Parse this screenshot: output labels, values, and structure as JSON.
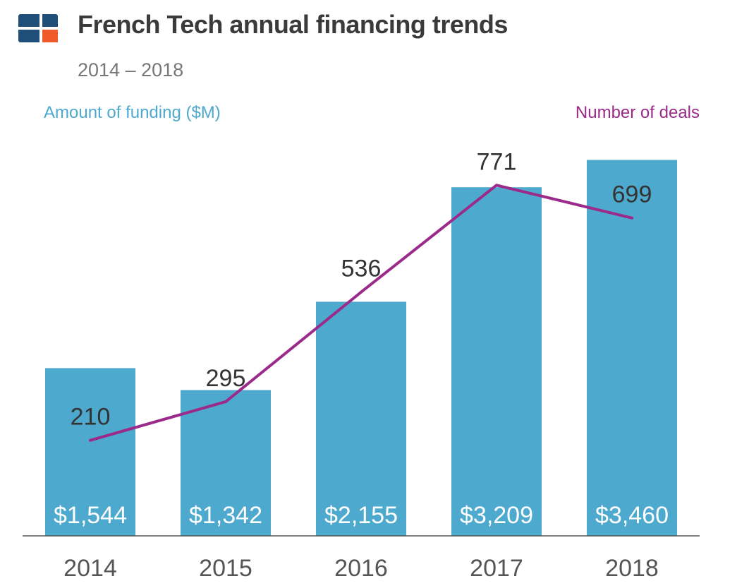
{
  "header": {
    "title": "French Tech annual financing trends",
    "subtitle": "2014 – 2018"
  },
  "legend": {
    "funding": "Amount of funding ($M)",
    "deals": "Number of deals"
  },
  "colors": {
    "bar": "#4ea9cf",
    "line": "#9b2a8a",
    "logo_blue": "#1f4e79",
    "logo_orange": "#f05a28",
    "axis": "#555555",
    "text_dark": "#333333",
    "funding_legend": "#4ea9cf",
    "deals_legend": "#9b2a8a"
  },
  "chart_data": {
    "type": "bar",
    "title": "French Tech annual financing trends",
    "subtitle": "2014 – 2018",
    "categories": [
      "2014",
      "2015",
      "2016",
      "2017",
      "2018"
    ],
    "series": [
      {
        "name": "Amount of funding ($M)",
        "type": "bar",
        "values": [
          1544,
          1342,
          2155,
          3209,
          3460
        ],
        "labels": [
          "$1,544",
          "$1,342",
          "$2,155",
          "$3,209",
          "$3,460"
        ]
      },
      {
        "name": "Number of deals",
        "type": "line",
        "values": [
          210,
          295,
          536,
          771,
          699
        ],
        "labels": [
          "210",
          "295",
          "536",
          "771",
          "699"
        ]
      }
    ],
    "ylim_funding": [
      0,
      3600
    ],
    "ylim_deals": [
      0,
      860
    ],
    "grid": false
  }
}
